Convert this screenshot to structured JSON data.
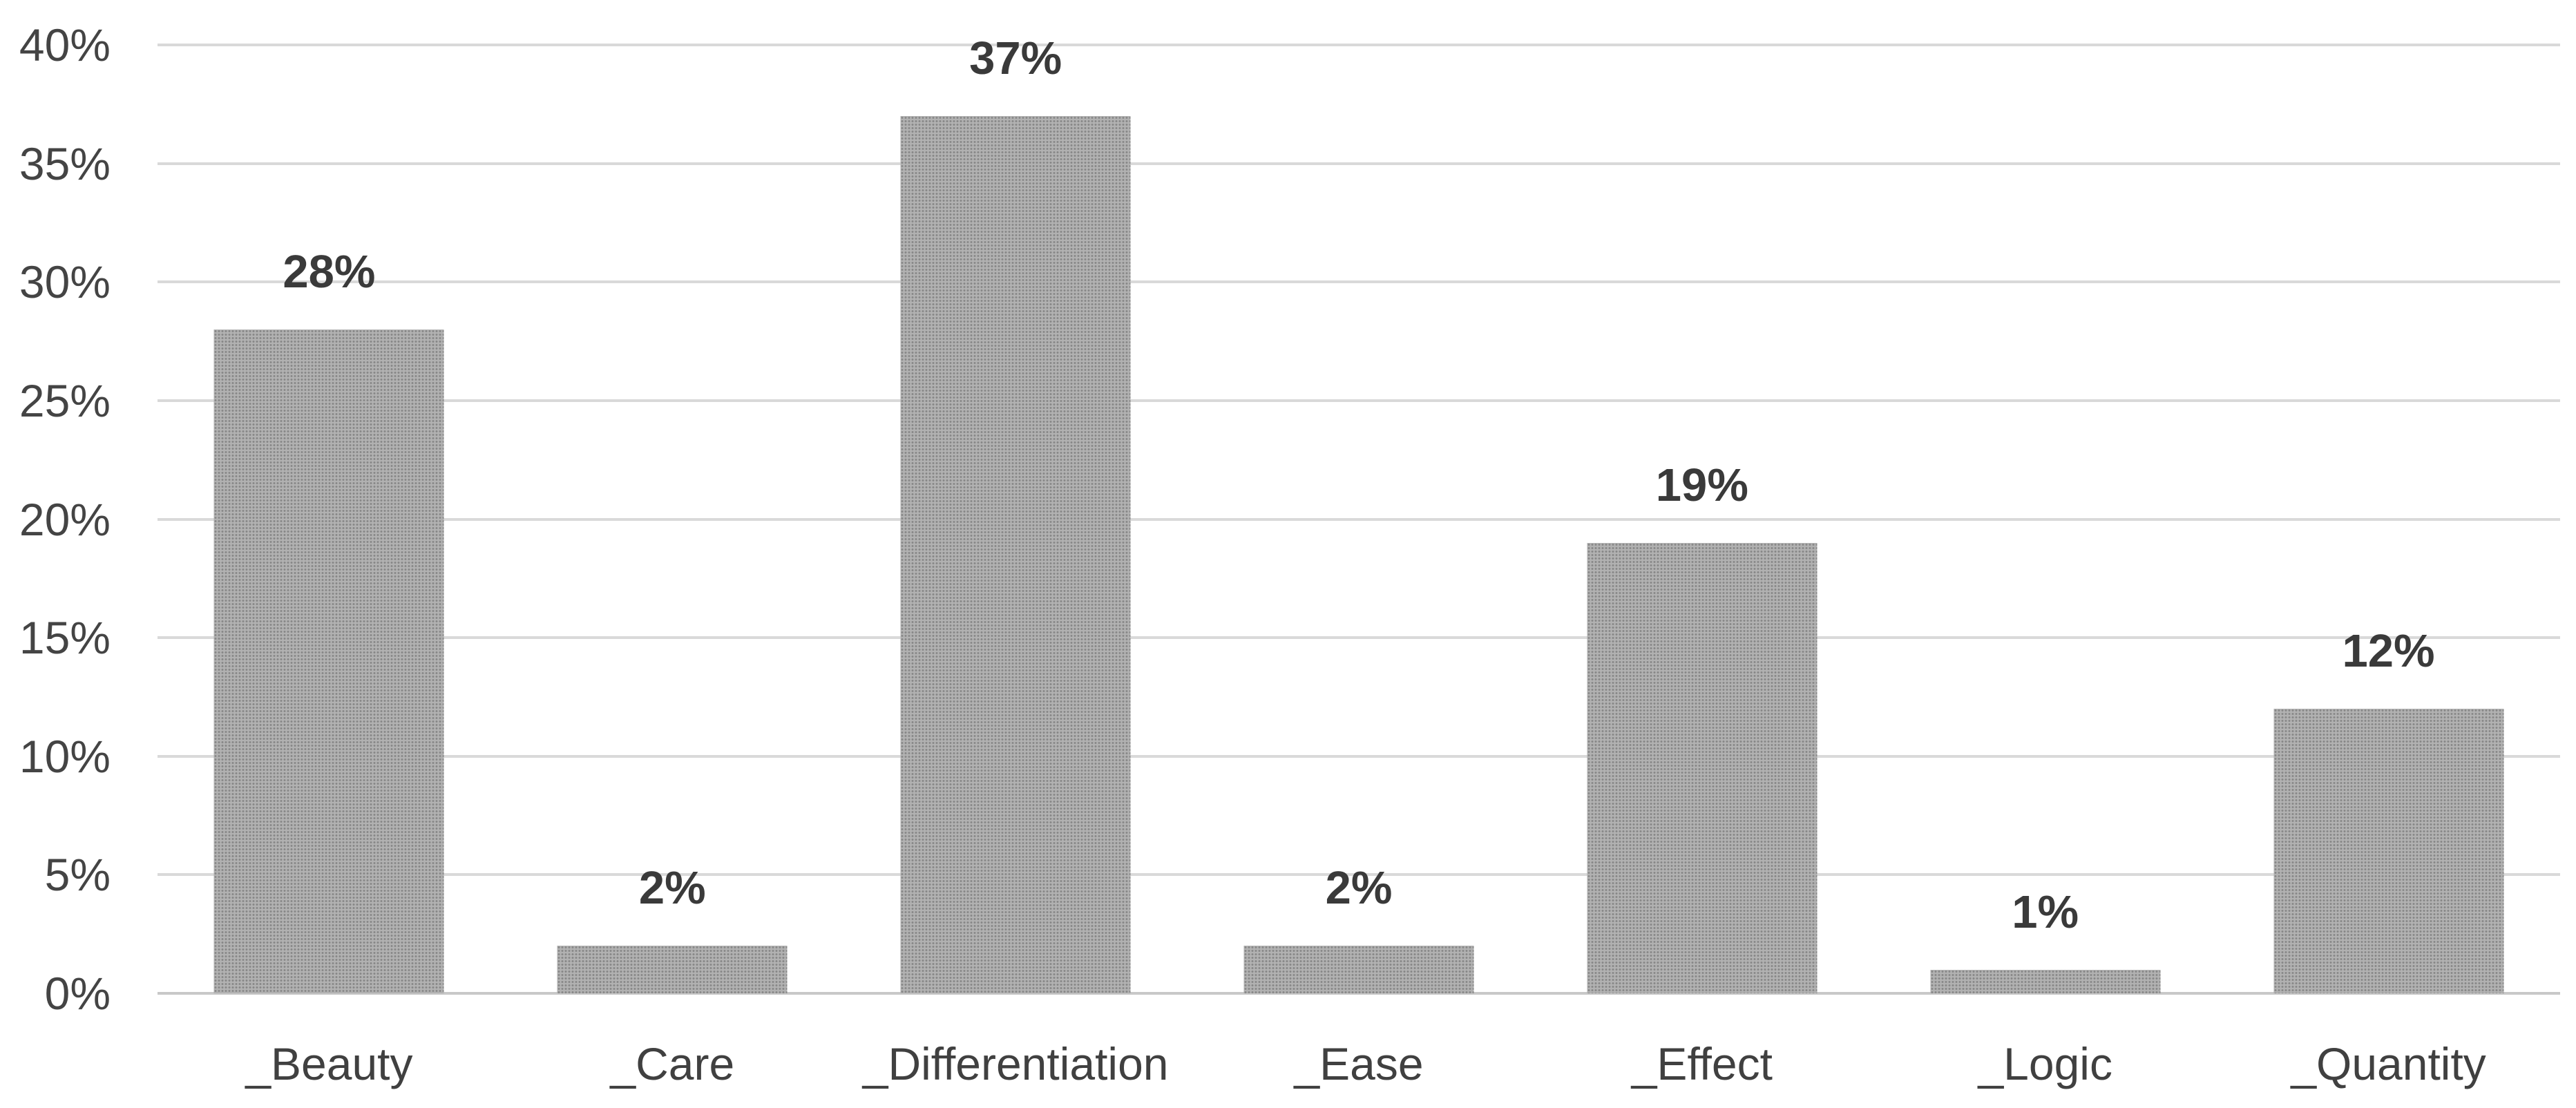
{
  "chart_data": {
    "type": "bar",
    "title": "",
    "xlabel": "",
    "ylabel": "",
    "categories": [
      "_Beauty",
      "_Care",
      "_Differentiation",
      "_Ease",
      "_Effect",
      "_Logic",
      "_Quantity"
    ],
    "values": [
      28,
      2,
      37,
      2,
      19,
      1,
      12
    ],
    "data_labels": [
      "28%",
      "2%",
      "37%",
      "2%",
      "19%",
      "1%",
      "12%"
    ],
    "ylim": [
      0,
      40
    ],
    "ytick_step": 5,
    "ytick_labels": [
      "0%",
      "5%",
      "10%",
      "15%",
      "20%",
      "25%",
      "30%",
      "35%",
      "40%"
    ],
    "grid": true,
    "legend": false,
    "colors": {
      "bar_fill": "#a5a5a5",
      "gridline": "#d9d9d9",
      "axis_line": "#c8c8c8",
      "data_label_text": "#3a3a3a",
      "tick_label_text": "#444444",
      "category_label_text": "#404040",
      "background": "#ffffff"
    }
  }
}
